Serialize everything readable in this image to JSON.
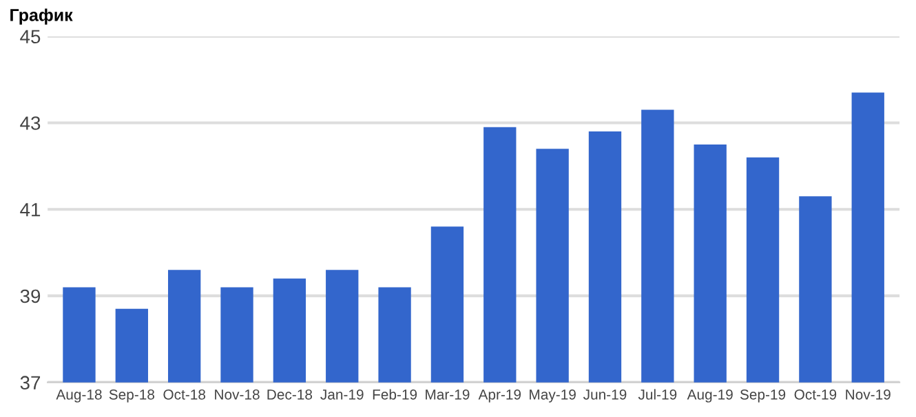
{
  "chart_data": {
    "type": "bar",
    "title": "График",
    "categories": [
      "Aug-18",
      "Sep-18",
      "Oct-18",
      "Nov-18",
      "Dec-18",
      "Jan-19",
      "Feb-19",
      "Mar-19",
      "Apr-19",
      "May-19",
      "Jun-19",
      "Jul-19",
      "Aug-19",
      "Sep-19",
      "Oct-19",
      "Nov-19"
    ],
    "values": [
      39.2,
      38.7,
      39.6,
      39.2,
      39.4,
      39.6,
      39.2,
      40.6,
      42.9,
      42.4,
      42.8,
      43.3,
      42.5,
      42.2,
      41.3,
      43.7
    ],
    "color": "#3366cc",
    "ylim": [
      37,
      45
    ],
    "yticks": [
      37,
      39,
      41,
      43,
      45
    ],
    "grid": "y"
  }
}
